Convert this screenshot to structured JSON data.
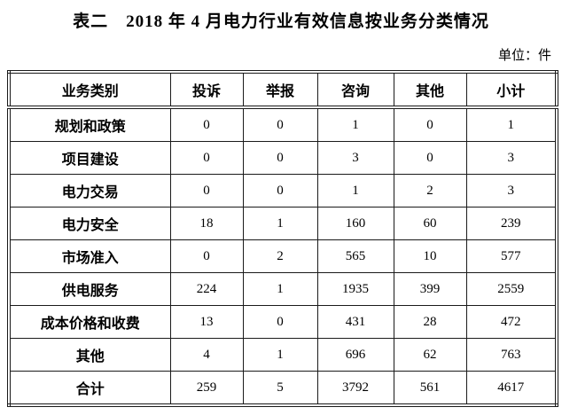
{
  "page": {
    "title": "表二　2018 年 4 月电力行业有效信息按业务分类情况",
    "unit_label": "单位：件"
  },
  "table": {
    "columns": [
      "业务类别",
      "投诉",
      "举报",
      "咨询",
      "其他",
      "小计"
    ],
    "rows": [
      {
        "label": "规划和政策",
        "values": [
          "0",
          "0",
          "1",
          "0",
          "1"
        ]
      },
      {
        "label": "项目建设",
        "values": [
          "0",
          "0",
          "3",
          "0",
          "3"
        ]
      },
      {
        "label": "电力交易",
        "values": [
          "0",
          "0",
          "1",
          "2",
          "3"
        ]
      },
      {
        "label": "电力安全",
        "values": [
          "18",
          "1",
          "160",
          "60",
          "239"
        ]
      },
      {
        "label": "市场准入",
        "values": [
          "0",
          "2",
          "565",
          "10",
          "577"
        ]
      },
      {
        "label": "供电服务",
        "values": [
          "224",
          "1",
          "1935",
          "399",
          "2559"
        ]
      },
      {
        "label": "成本价格和收费",
        "values": [
          "13",
          "0",
          "431",
          "28",
          "472"
        ]
      },
      {
        "label": "其他",
        "values": [
          "4",
          "1",
          "696",
          "62",
          "763"
        ]
      },
      {
        "label": "合计",
        "values": [
          "259",
          "5",
          "3792",
          "561",
          "4617"
        ]
      }
    ]
  }
}
